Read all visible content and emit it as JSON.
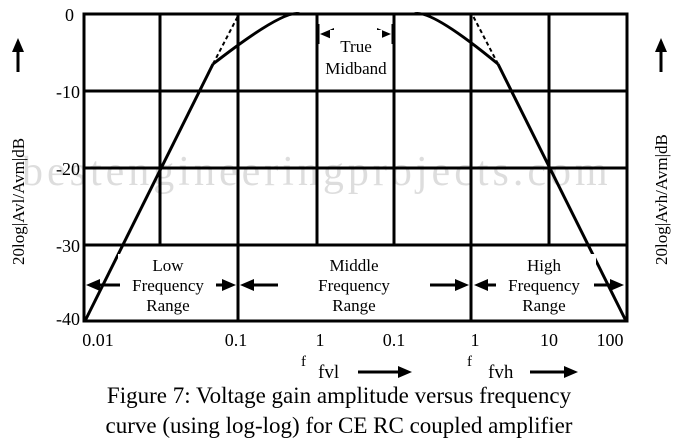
{
  "y_axis": {
    "left_label": "20log|Avl/Avm|dB",
    "right_label": "20log|Avh/Avm|dB",
    "ticks": [
      "0",
      "-10",
      "-20",
      "-30",
      "-40"
    ]
  },
  "x_axis": {
    "ticks": [
      "0.01",
      "0.1",
      "1",
      "0.1",
      "1",
      "10",
      "100"
    ],
    "sub_labels": [
      {
        "f": "f",
        "name": "fvl"
      },
      {
        "f": "f",
        "name": "fvh"
      }
    ]
  },
  "regions": {
    "low": [
      "Low",
      "Frequency",
      "Range"
    ],
    "middle": [
      "Middle",
      "Frequency",
      "Range"
    ],
    "high": [
      "High",
      "Frequency",
      "Range"
    ]
  },
  "midband_label": [
    "True",
    "Midband"
  ],
  "watermark": "bestengineeringprojects.com",
  "caption": [
    "Figure 7: Voltage gain amplitude versus frequency",
    "curve (using log-log) for CE RC coupled amplifier"
  ]
}
